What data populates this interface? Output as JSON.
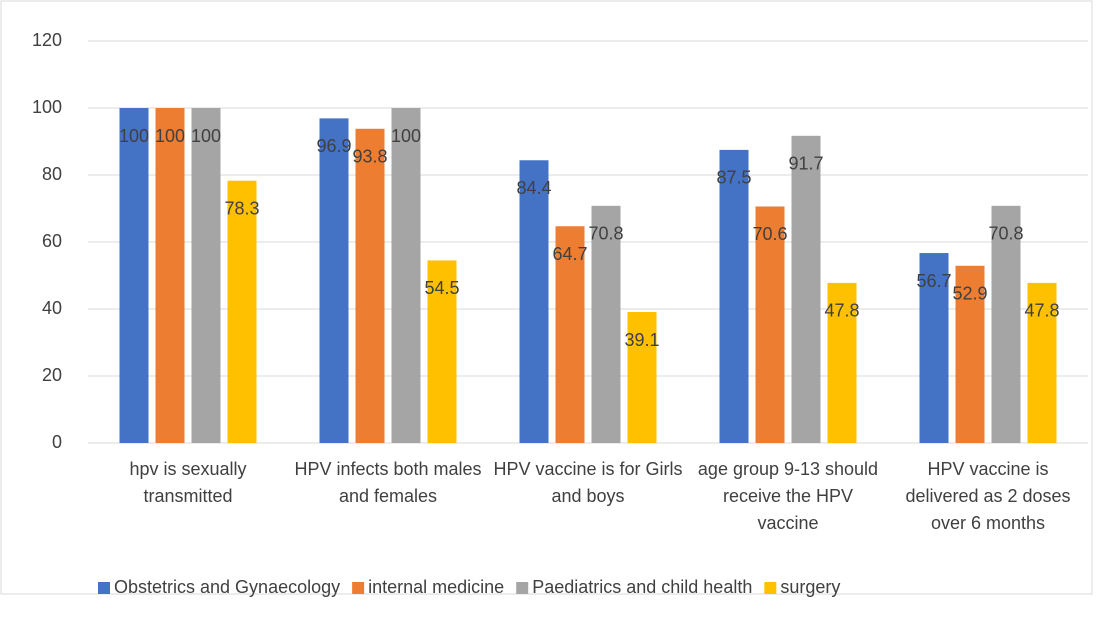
{
  "chart_data": {
    "type": "bar",
    "categories": [
      "hpv is sexually transmitted",
      "HPV infects both males and females",
      "HPV vaccine is for Girls and boys",
      "age group 9-13 should receive the HPV vaccine",
      "HPV vaccine is delivered as 2 doses over 6 months"
    ],
    "series": [
      {
        "name": "Obstetrics and Gynaecology",
        "color": "#4472c4",
        "values": [
          100,
          96.9,
          84.4,
          87.5,
          56.7
        ]
      },
      {
        "name": "internal medicine",
        "color": "#ed7d31",
        "values": [
          100,
          93.8,
          64.7,
          70.6,
          52.9
        ]
      },
      {
        "name": "Paediatrics and child health",
        "color": "#a5a5a5",
        "values": [
          100,
          100,
          70.8,
          91.7,
          70.8
        ]
      },
      {
        "name": "surgery",
        "color": "#ffc000",
        "values": [
          78.3,
          54.5,
          39.1,
          47.8,
          47.8
        ]
      }
    ],
    "ylim": [
      0,
      120
    ],
    "yticks": [
      0,
      20,
      40,
      60,
      80,
      100,
      120
    ],
    "grid": true,
    "legend": "bottom"
  }
}
